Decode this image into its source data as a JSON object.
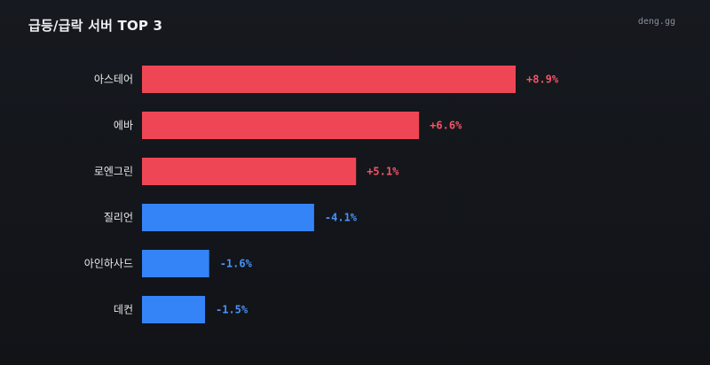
{
  "header": {
    "title": "급등/급락 서버 TOP 3",
    "source": "deng.gg"
  },
  "colors": {
    "up": "#ef4655",
    "down": "#3584f7",
    "up_text": "#f25564",
    "down_text": "#4a92f7"
  },
  "chart_data": {
    "type": "bar",
    "orientation": "horizontal",
    "title": "급등/급락 서버 TOP 3",
    "categories": [
      "아스테어",
      "에바",
      "로엔그린",
      "질리언",
      "아인하사드",
      "데컨"
    ],
    "values": [
      8.9,
      6.6,
      5.1,
      -4.1,
      -1.6,
      -1.5
    ],
    "value_labels": [
      "+8.9%",
      "+6.6%",
      "+5.1%",
      "-4.1%",
      "-1.6%",
      "-1.5%"
    ],
    "unit": "%",
    "grid": false,
    "legend": "none"
  }
}
